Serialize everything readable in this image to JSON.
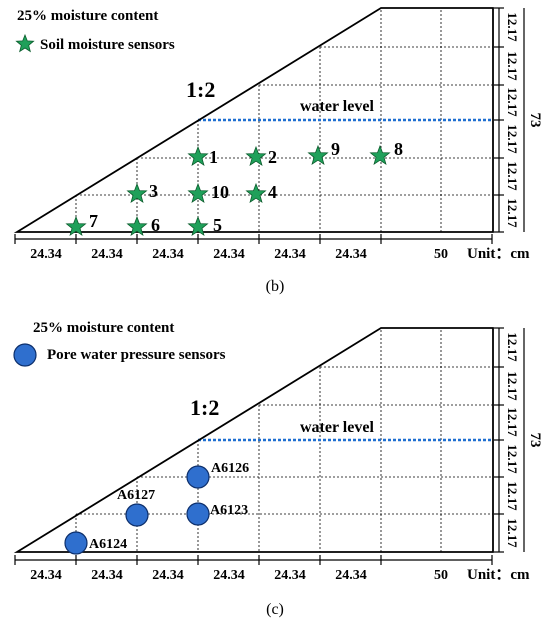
{
  "panel_b": {
    "legend_moisture": "25% moisture content",
    "legend_sensor": "Soil moisture sensors",
    "slope_ratio": "1:2",
    "water_level": "water level",
    "caption": "(b)",
    "sensor_labels": [
      "1",
      "2",
      "3",
      "4",
      "5",
      "6",
      "7",
      "8",
      "9",
      "10"
    ],
    "sensor_color": "#1fa05a"
  },
  "panel_c": {
    "legend_moisture": "25% moisture content",
    "legend_sensor": "Pore water pressure sensors",
    "slope_ratio": "1:2",
    "water_level": "water level",
    "caption": "(c)",
    "sensor_labels": [
      "A6126",
      "A6127",
      "A6123",
      "A6124"
    ],
    "sensor_color": "#2f6fce"
  },
  "dimensions": {
    "bottom_segments": [
      "24.34",
      "24.34",
      "24.34",
      "24.34",
      "24.34",
      "24.34",
      "50"
    ],
    "right_segments": [
      "12.17",
      "12.17",
      "12.17",
      "12.17",
      "12.17",
      "12.17"
    ],
    "total_height": "73",
    "unit_label": "Unit：cm"
  },
  "colors": {
    "water_line": "#1f6fd0",
    "outline": "#000000"
  }
}
